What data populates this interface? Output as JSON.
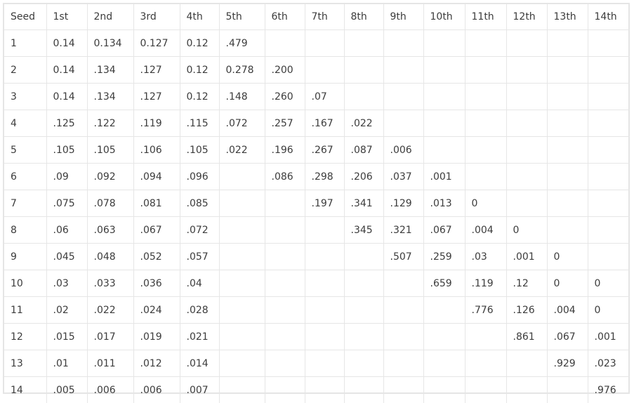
{
  "table": {
    "headers": [
      "Seed",
      "1st",
      "2nd",
      "3rd",
      "4th",
      "5th",
      "6th",
      "7th",
      "8th",
      "9th",
      "10th",
      "11th",
      "12th",
      "13th",
      "14th"
    ],
    "rows": [
      [
        "1",
        "0.14",
        "0.134",
        "0.127",
        "0.12",
        ".479",
        "",
        "",
        "",
        "",
        "",
        "",
        "",
        "",
        ""
      ],
      [
        "2",
        "0.14",
        ".134",
        ".127",
        "0.12",
        "0.278",
        ".200",
        "",
        "",
        "",
        "",
        "",
        "",
        "",
        ""
      ],
      [
        "3",
        "0.14",
        ".134",
        ".127",
        "0.12",
        ".148",
        ".260",
        ".07",
        "",
        "",
        "",
        "",
        "",
        "",
        ""
      ],
      [
        "4",
        ".125",
        ".122",
        ".119",
        ".115",
        ".072",
        ".257",
        ".167",
        ".022",
        "",
        "",
        "",
        "",
        "",
        ""
      ],
      [
        "5",
        ".105",
        ".105",
        ".106",
        ".105",
        ".022",
        ".196",
        ".267",
        ".087",
        ".006",
        "",
        "",
        "",
        "",
        ""
      ],
      [
        "6",
        ".09",
        ".092",
        ".094",
        ".096",
        "",
        ".086",
        ".298",
        ".206",
        ".037",
        ".001",
        "",
        "",
        "",
        ""
      ],
      [
        "7",
        ".075",
        ".078",
        ".081",
        ".085",
        "",
        "",
        ".197",
        ".341",
        ".129",
        ".013",
        "0",
        "",
        "",
        ""
      ],
      [
        "8",
        ".06",
        ".063",
        ".067",
        ".072",
        "",
        "",
        "",
        ".345",
        ".321",
        ".067",
        ".004",
        "0",
        "",
        ""
      ],
      [
        "9",
        ".045",
        ".048",
        ".052",
        ".057",
        "",
        "",
        "",
        "",
        ".507",
        ".259",
        ".03",
        ".001",
        "0",
        ""
      ],
      [
        "10",
        ".03",
        ".033",
        ".036",
        ".04",
        "",
        "",
        "",
        "",
        "",
        ".659",
        ".119",
        ".12",
        "0",
        "0"
      ],
      [
        "11",
        ".02",
        ".022",
        ".024",
        ".028",
        "",
        "",
        "",
        "",
        "",
        "",
        ".776",
        ".126",
        ".004",
        "0"
      ],
      [
        "12",
        ".015",
        ".017",
        ".019",
        ".021",
        "",
        "",
        "",
        "",
        "",
        "",
        "",
        ".861",
        ".067",
        ".001"
      ],
      [
        "13",
        ".01",
        ".011",
        ".012",
        ".014",
        "",
        "",
        "",
        "",
        "",
        "",
        "",
        "",
        ".929",
        ".023"
      ],
      [
        "14",
        ".005",
        ".006",
        ".006",
        ".007",
        "",
        "",
        "",
        "",
        "",
        "",
        "",
        "",
        "",
        ".976"
      ]
    ]
  }
}
